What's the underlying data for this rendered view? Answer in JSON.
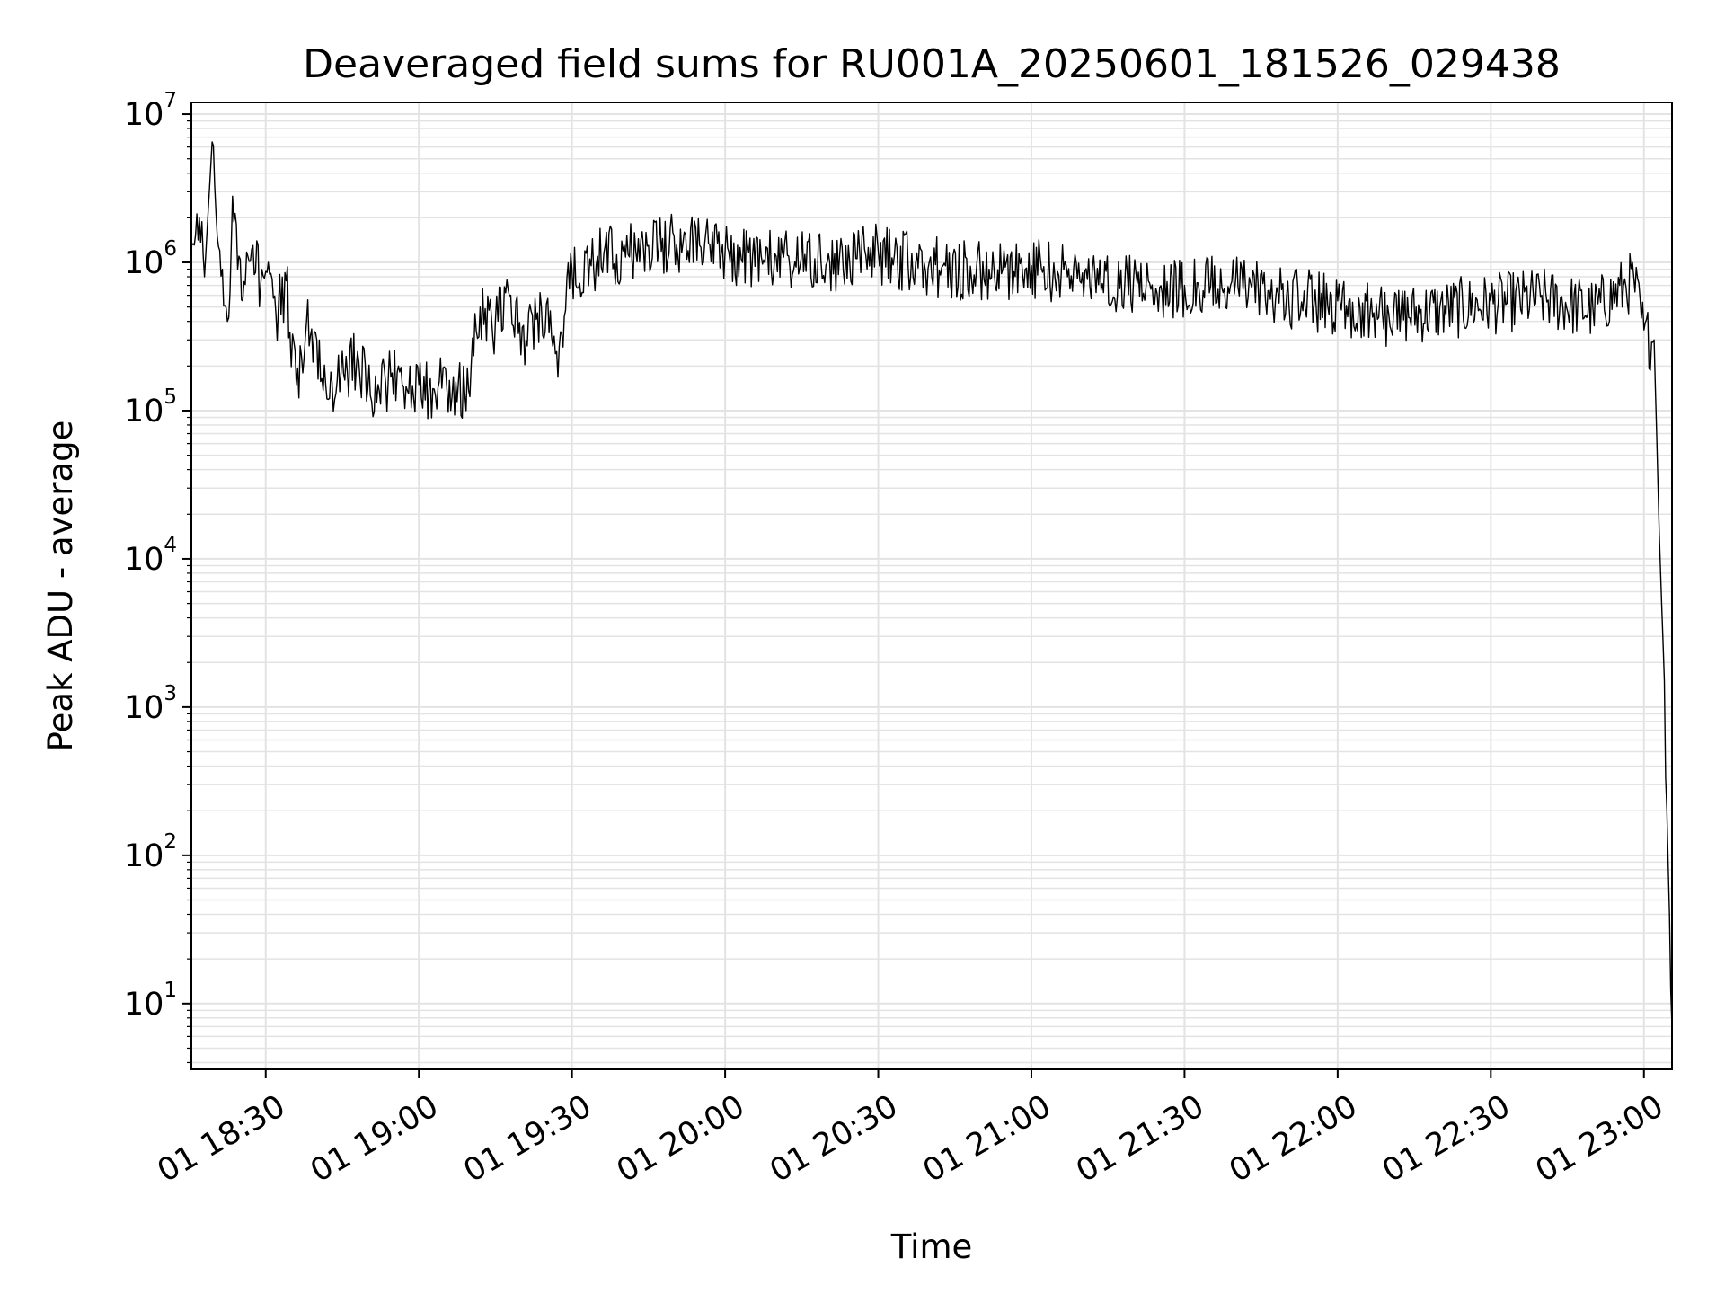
{
  "chart_data": {
    "type": "line",
    "title": "Deaveraged field sums for RU001A_20250601_181526_029438",
    "xlabel": "Time",
    "ylabel": "Peak ADU - average",
    "yscale": "log",
    "xlim": [
      "2025-06-01 18:15:26",
      "2025-06-01 23:05:30"
    ],
    "ylim": [
      3.6,
      12000000
    ],
    "x_ticks": [
      {
        "value": "2025-06-01 18:30",
        "label": "01 18:30"
      },
      {
        "value": "2025-06-01 19:00",
        "label": "01 19:00"
      },
      {
        "value": "2025-06-01 19:30",
        "label": "01 19:30"
      },
      {
        "value": "2025-06-01 20:00",
        "label": "01 20:00"
      },
      {
        "value": "2025-06-01 20:30",
        "label": "01 20:30"
      },
      {
        "value": "2025-06-01 21:00",
        "label": "01 21:00"
      },
      {
        "value": "2025-06-01 21:30",
        "label": "01 21:30"
      },
      {
        "value": "2025-06-01 22:00",
        "label": "01 22:00"
      },
      {
        "value": "2025-06-01 22:30",
        "label": "01 22:30"
      },
      {
        "value": "2025-06-01 23:00",
        "label": "01 23:00"
      }
    ],
    "y_ticks": [
      {
        "value": 10,
        "base": "10",
        "exp": "1"
      },
      {
        "value": 100,
        "base": "10",
        "exp": "2"
      },
      {
        "value": 1000,
        "base": "10",
        "exp": "3"
      },
      {
        "value": 10000,
        "base": "10",
        "exp": "4"
      },
      {
        "value": 100000,
        "base": "10",
        "exp": "5"
      },
      {
        "value": 1000000,
        "base": "10",
        "exp": "6"
      },
      {
        "value": 10000000,
        "base": "10",
        "exp": "7"
      }
    ],
    "grid": true,
    "line_color": "#000000",
    "grid_color": "#e3e3e3",
    "series": [
      {
        "x": [
          "2025-06-01 18:15:30",
          "2025-06-01 18:17:00",
          "2025-06-01 18:18:00",
          "2025-06-01 18:19:30",
          "2025-06-01 18:20:30",
          "2025-06-01 18:21:30",
          "2025-06-01 18:22:30",
          "2025-06-01 18:23:30",
          "2025-06-01 18:24:30",
          "2025-06-01 18:25:30",
          "2025-06-01 18:26:30",
          "2025-06-01 18:27:30",
          "2025-06-01 18:29:00",
          "2025-06-01 18:30:30",
          "2025-06-01 18:32:00",
          "2025-06-01 18:34:00",
          "2025-06-01 18:36:00",
          "2025-06-01 18:38:00",
          "2025-06-01 18:40:00",
          "2025-06-01 18:42:00",
          "2025-06-01 18:44:00",
          "2025-06-01 18:46:00",
          "2025-06-01 18:48:00",
          "2025-06-01 18:50:00",
          "2025-06-01 18:52:00",
          "2025-06-01 18:54:00",
          "2025-06-01 18:56:00",
          "2025-06-01 18:58:00",
          "2025-06-01 19:00:00",
          "2025-06-01 19:03:00",
          "2025-06-01 19:06:00",
          "2025-06-01 19:09:00",
          "2025-06-01 19:12:00",
          "2025-06-01 19:15:00",
          "2025-06-01 19:18:00",
          "2025-06-01 19:21:00",
          "2025-06-01 19:24:00",
          "2025-06-01 19:27:00",
          "2025-06-01 19:30:00",
          "2025-06-01 19:35:00",
          "2025-06-01 19:40:00",
          "2025-06-01 19:45:00",
          "2025-06-01 19:50:00",
          "2025-06-01 19:55:00",
          "2025-06-01 20:00:00",
          "2025-06-01 20:10:00",
          "2025-06-01 20:20:00",
          "2025-06-01 20:30:00",
          "2025-06-01 20:40:00",
          "2025-06-01 20:50:00",
          "2025-06-01 21:00:00",
          "2025-06-01 21:10:00",
          "2025-06-01 21:20:00",
          "2025-06-01 21:30:00",
          "2025-06-01 21:40:00",
          "2025-06-01 21:50:00",
          "2025-06-01 22:00:00",
          "2025-06-01 22:10:00",
          "2025-06-01 22:20:00",
          "2025-06-01 22:30:00",
          "2025-06-01 22:40:00",
          "2025-06-01 22:50:00",
          "2025-06-01 22:56:00",
          "2025-06-01 22:58:00",
          "2025-06-01 23:00:00",
          "2025-06-01 23:02:00",
          "2025-06-01 23:03:00",
          "2025-06-01 23:04:00",
          "2025-06-01 23:04:30",
          "2025-06-01 23:05:00",
          "2025-06-01 23:05:30"
        ],
        "y": [
          1300000,
          2000000,
          800000,
          6500000,
          1500000,
          900000,
          400000,
          2800000,
          900000,
          550000,
          1100000,
          1300000,
          700000,
          1000000,
          450000,
          750000,
          150000,
          400000,
          300000,
          120000,
          160000,
          180000,
          250000,
          140000,
          150000,
          160000,
          200000,
          130000,
          150000,
          140000,
          160000,
          130000,
          500000,
          400000,
          600000,
          300000,
          500000,
          250000,
          900000,
          1100000,
          1200000,
          1300000,
          1500000,
          1300000,
          1200000,
          1100000,
          1000000,
          1200000,
          1000000,
          900000,
          950000,
          850000,
          750000,
          700000,
          750000,
          600000,
          550000,
          450000,
          500000,
          550000,
          600000,
          500000,
          700000,
          800000,
          350000,
          300000,
          15000,
          1500,
          200,
          40,
          7
        ]
      }
    ]
  }
}
